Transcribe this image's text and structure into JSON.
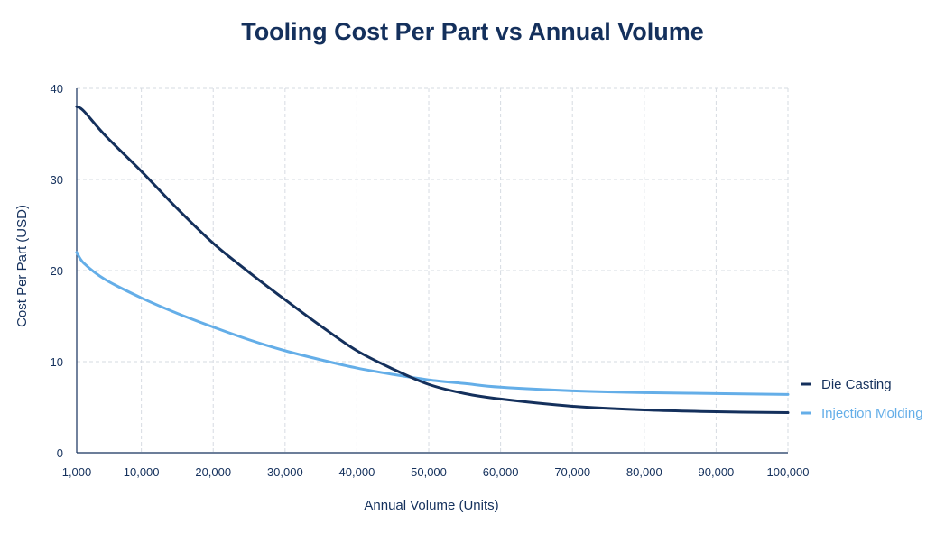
{
  "chart_data": {
    "type": "line",
    "title": "Tooling Cost Per Part vs Annual Volume",
    "xlabel": "Annual Volume (Units)",
    "ylabel": "Cost Per Part (USD)",
    "xlim": [
      1000,
      100000
    ],
    "ylim": [
      0,
      40
    ],
    "x_ticks": [
      1000,
      10000,
      20000,
      30000,
      40000,
      50000,
      60000,
      70000,
      80000,
      90000,
      100000
    ],
    "x_tick_labels": [
      "1,000",
      "10,000",
      "20,000",
      "30,000",
      "40,000",
      "50,000",
      "60,000",
      "70,000",
      "80,000",
      "90,000",
      "100,000"
    ],
    "y_ticks": [
      0,
      10,
      20,
      30,
      40
    ],
    "y_tick_labels": [
      "0",
      "10",
      "20",
      "30",
      "40"
    ],
    "grid": true,
    "legend_position": "right",
    "series": [
      {
        "name": "Die Casting",
        "color": "#14305c",
        "x": [
          1000,
          2000,
          5000,
          10000,
          15000,
          20000,
          25000,
          30000,
          35000,
          40000,
          45000,
          50000,
          55000,
          60000,
          70000,
          80000,
          90000,
          100000
        ],
        "y": [
          38,
          37.5,
          34.8,
          30.9,
          26.8,
          23,
          19.8,
          16.8,
          13.9,
          11.2,
          9.2,
          7.5,
          6.5,
          5.9,
          5.1,
          4.7,
          4.5,
          4.4
        ]
      },
      {
        "name": "Injection Molding",
        "color": "#64aee8",
        "x": [
          1000,
          2000,
          5000,
          10000,
          15000,
          20000,
          25000,
          30000,
          35000,
          40000,
          45000,
          50000,
          55000,
          60000,
          70000,
          80000,
          90000,
          100000
        ],
        "y": [
          22,
          20.8,
          19,
          17,
          15.3,
          13.8,
          12.4,
          11.2,
          10.2,
          9.3,
          8.6,
          8,
          7.6,
          7.2,
          6.8,
          6.6,
          6.5,
          6.4
        ]
      }
    ]
  }
}
